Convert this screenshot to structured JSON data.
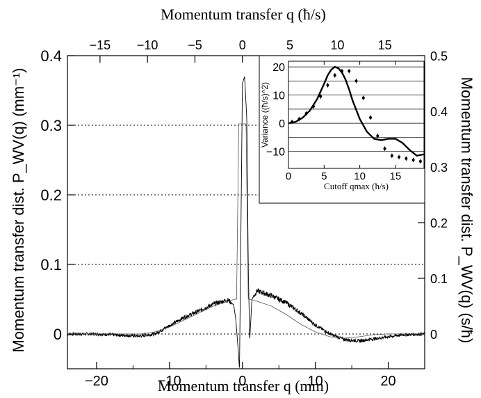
{
  "chart_data": [
    {
      "type": "line",
      "xlabel_bottom": "Momentum transfer q (mm)",
      "xlabel_top": "Momentum transfer q (ħ/s)",
      "ylabel_left": "Momentum transfer dist. P_WV(q) (mm⁻¹)",
      "ylabel_right": "Momentum transfer dist. P_WV(q) (s/ħ)",
      "xlim": [
        -24,
        25
      ],
      "ylim": [
        -0.05,
        0.4
      ],
      "x_ticks_bottom": [
        -20,
        -10,
        0,
        10,
        20
      ],
      "x_tick_labels_bottom": [
        "−20",
        "−10",
        "0",
        "10",
        "20"
      ],
      "y_ticks_left": [
        0,
        0.1,
        0.2,
        0.3,
        0.4
      ],
      "y_tick_labels_left": [
        "0",
        "0.1",
        "0.2",
        "0.3",
        "0.4"
      ],
      "top_axis_ticks_hbar_per_s": [
        -15,
        -10,
        -5,
        0,
        5,
        10,
        15
      ],
      "top_axis_tick_labels": [
        "−15",
        "−10",
        "−5",
        "0",
        "5",
        "10",
        "15"
      ],
      "right_axis_ticks_s_per_hbar": [
        0,
        0.1,
        0.2,
        0.3,
        0.4,
        0.5
      ],
      "right_axis_tick_labels": [
        "0",
        "0.1",
        "0.2",
        "0.3",
        "0.4",
        "0.5"
      ],
      "dotted_reference_lines_y": [
        0,
        0.1,
        0.2,
        0.3
      ],
      "series": [
        {
          "style": "noisy-measured",
          "x": [
            -24,
            -20,
            -16,
            -14,
            -12,
            -10,
            -8,
            -6,
            -4,
            -2,
            -1.2,
            -0.9,
            -0.6,
            -0.4,
            0,
            0.3,
            0.6,
            0.8,
            1,
            1.3,
            2,
            4,
            6,
            8,
            10,
            12,
            14,
            16,
            18,
            20,
            22,
            25
          ],
          "y": [
            0,
            0,
            -0.002,
            -0.003,
            0,
            0.012,
            0.024,
            0.033,
            0.043,
            0.049,
            0.042,
            0.02,
            -0.02,
            -0.05,
            0.36,
            0.37,
            0.31,
            0.1,
            -0.01,
            0.05,
            0.062,
            0.055,
            0.045,
            0.03,
            0.013,
            0,
            -0.008,
            -0.01,
            -0.007,
            -0.004,
            -0.001,
            0
          ]
        },
        {
          "style": "smooth-theory",
          "x": [
            -24,
            -20,
            -16,
            -14,
            -12,
            -10,
            -8,
            -6,
            -4,
            -2,
            -1,
            -0.8,
            -0.5,
            0,
            0.5,
            0.8,
            1,
            2,
            4,
            6,
            8,
            10,
            12,
            14,
            16,
            18,
            20,
            25
          ],
          "y": [
            0,
            0,
            0,
            0,
            0.003,
            0.01,
            0.02,
            0.03,
            0.04,
            0.047,
            0.05,
            0.05,
            0.302,
            0.302,
            0.302,
            0.05,
            0.05,
            0.047,
            0.04,
            0.028,
            0.014,
            0.003,
            -0.004,
            -0.006,
            -0.004,
            -0.001,
            0,
            0
          ]
        }
      ]
    },
    {
      "type": "scatter",
      "xlabel": "Cutoff qmax (ħ/s)",
      "ylabel": "Variance ((ħ/s)^2)",
      "xlim": [
        0,
        19
      ],
      "ylim": [
        -16,
        22
      ],
      "x_ticks": [
        0,
        5,
        10,
        15
      ],
      "x_tick_labels": [
        "0",
        "5",
        "10",
        "15"
      ],
      "y_ticks": [
        -10,
        0,
        10,
        20
      ],
      "y_tick_labels": [
        "−10",
        "0",
        "10",
        "20"
      ],
      "grid_y": [
        -10,
        -5,
        0,
        5,
        10,
        15,
        20
      ],
      "points": [
        {
          "x": 0.5,
          "y": 0.5
        },
        {
          "x": 1.5,
          "y": 1.5
        },
        {
          "x": 2.5,
          "y": 3.5
        },
        {
          "x": 3.5,
          "y": 6
        },
        {
          "x": 4.5,
          "y": 9.5
        },
        {
          "x": 5.5,
          "y": 13.5
        },
        {
          "x": 6.5,
          "y": 17
        },
        {
          "x": 7.5,
          "y": 18.5
        },
        {
          "x": 8.5,
          "y": 18.5
        },
        {
          "x": 9.5,
          "y": 15
        },
        {
          "x": 10.5,
          "y": 9
        },
        {
          "x": 11.5,
          "y": 2
        },
        {
          "x": 12.5,
          "y": -4.5
        },
        {
          "x": 13.5,
          "y": -9
        },
        {
          "x": 14.5,
          "y": -11.5
        },
        {
          "x": 15.5,
          "y": -12
        },
        {
          "x": 16.5,
          "y": -12.5
        },
        {
          "x": 17.5,
          "y": -13
        },
        {
          "x": 18.5,
          "y": -13.5
        }
      ],
      "error_bar": 0.8,
      "theory_curve": {
        "x": [
          0,
          1,
          2,
          3,
          4,
          5,
          5.5,
          6,
          6.5,
          7,
          7.5,
          8,
          8.5,
          9,
          10,
          11,
          12,
          13,
          14,
          15,
          16,
          17,
          18,
          19
        ],
        "y": [
          0,
          0.5,
          2,
          4.5,
          8.5,
          14,
          17,
          19,
          20,
          19.5,
          18,
          15.5,
          12,
          8,
          1.5,
          -3,
          -5.5,
          -6,
          -5.5,
          -5.5,
          -7,
          -9.5,
          -11.5,
          -11
        ]
      }
    }
  ]
}
